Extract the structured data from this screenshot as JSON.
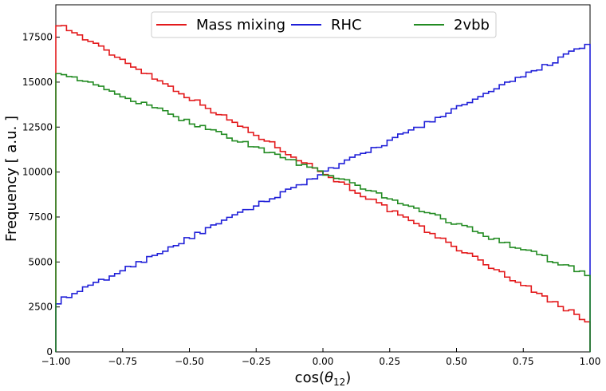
{
  "chart_data": {
    "type": "line",
    "style": "step-histogram",
    "xlabel_text": "cos(",
    "xlabel_symbol": "θ",
    "xlabel_sub": "12",
    "xlabel_close": ")",
    "ylabel": "Frequency [ a.u. ]",
    "xlim": [
      -1.0,
      1.0
    ],
    "ylim": [
      0,
      19300
    ],
    "xticks": [
      -1.0,
      -0.75,
      -0.5,
      -0.25,
      0.0,
      0.25,
      0.5,
      0.75,
      1.0
    ],
    "xtick_labels": [
      "−1.00",
      "−0.75",
      "−0.50",
      "−0.25",
      "0.00",
      "0.25",
      "0.50",
      "0.75",
      "1.00"
    ],
    "yticks": [
      0,
      2500,
      5000,
      7500,
      10000,
      12500,
      15000,
      17500
    ],
    "ytick_labels": [
      "0",
      "2500",
      "5000",
      "7500",
      "10000",
      "12500",
      "15000",
      "17500"
    ],
    "n_bins": 100,
    "legend_position": "upper center",
    "grid": false,
    "series": [
      {
        "name": "Mass mixing",
        "color": "#e31a1c",
        "start": 18330,
        "end": 1640
      },
      {
        "name": "RHC",
        "color": "#1f1fd8",
        "start": 2720,
        "end": 17120
      },
      {
        "name": "2vbb",
        "color": "#228b22",
        "start": 15650,
        "end": 4280
      }
    ]
  }
}
